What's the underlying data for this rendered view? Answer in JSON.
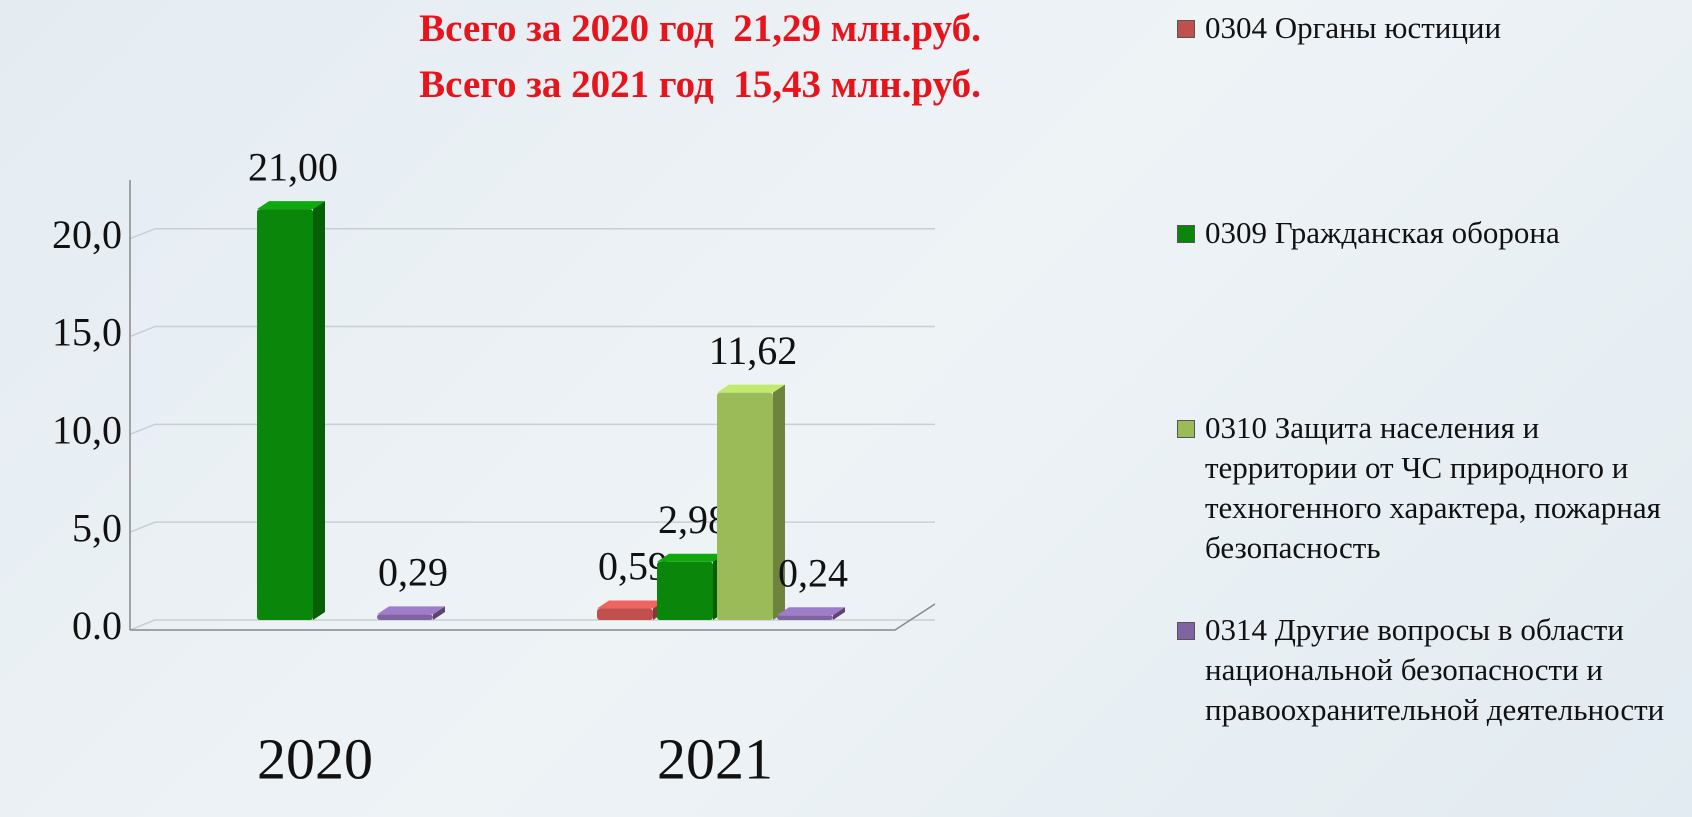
{
  "chart_data": {
    "type": "bar",
    "title": "Всего за 2020 год  21,29 млн.руб.",
    "subtitle": "Всего за 2021 год  15,43 млн.руб.",
    "categories": [
      "2020",
      "2021"
    ],
    "series": [
      {
        "name": "0304 Органы юстиции",
        "color": "#c0504d",
        "values": [
          null,
          0.59
        ],
        "value_labels": [
          null,
          "0,59"
        ]
      },
      {
        "name": "0309 Гражданская оборона",
        "color": "#0a870a",
        "values": [
          21.0,
          2.98
        ],
        "value_labels": [
          "21,00",
          "2,98"
        ]
      },
      {
        "name": "0310 Защита населения и территории от ЧС природного и техногенного характера, пожарная безопасность",
        "color": "#9bbb59",
        "values": [
          null,
          11.62
        ],
        "value_labels": [
          null,
          "11,62"
        ]
      },
      {
        "name": "0314 Другие вопросы в области национальной безопасности и правоохранительной деятельности",
        "color": "#8064a2",
        "values": [
          0.29,
          0.24
        ],
        "value_labels": [
          "0,29",
          "0,24"
        ]
      }
    ],
    "ylim": [
      0,
      23
    ],
    "yticks": [
      {
        "value": 0,
        "label": "0.0"
      },
      {
        "value": 5,
        "label": "5,0"
      },
      {
        "value": 10,
        "label": "10,0"
      },
      {
        "value": 15,
        "label": "15,0"
      },
      {
        "value": 20,
        "label": "20,0"
      }
    ],
    "grid": true,
    "legend": "right"
  }
}
